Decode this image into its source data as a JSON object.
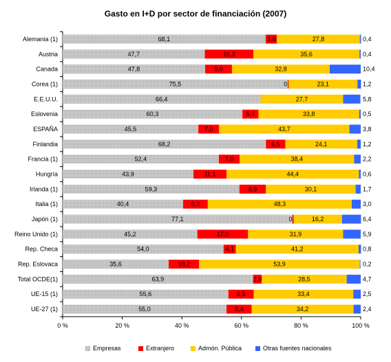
{
  "chart_data": {
    "type": "bar",
    "orientation": "horizontal",
    "stacked": true,
    "title": "Gasto en I+D por sector de financiación (2007)",
    "xlabel": "",
    "ylabel": "",
    "xlim": [
      0,
      100
    ],
    "x_ticks": [
      "0 %",
      "20 %",
      "40 %",
      "60 %",
      "80 %",
      "100 %"
    ],
    "grid": false,
    "legend_position": "bottom",
    "categories": [
      "Alemania (1)",
      "Austria",
      "Canada",
      "Corea (1)",
      "E.E.U.U.",
      "Eslovenia",
      "ESPAÑA",
      "Finlandia",
      "Francia (1)",
      "Hungría",
      "Irlanda (1)",
      "Italia (1)",
      "Japón (1)",
      "Reino Unido (1)",
      "Rep. Checa",
      "Rep. Eslovaca",
      "Total OCDE(1)",
      "UE-15 (1)",
      "UE-27 (1)"
    ],
    "series": [
      {
        "name": "Empresas",
        "color": "#c0c0c0",
        "values": [
          68.1,
          47.7,
          47.8,
          75.5,
          66.4,
          60.3,
          45.5,
          68.2,
          52.4,
          43.9,
          59.3,
          40.4,
          77.1,
          45.2,
          54.0,
          35.6,
          63.9,
          55.6,
          55.0
        ],
        "labels": [
          "68,1",
          "47,7",
          "47,8",
          "75,5",
          "66,4",
          "60,3",
          "45,5",
          "68,2",
          "52,4",
          "43,9",
          "59,3",
          "40,4",
          "77,1",
          "45,2",
          "54,0",
          "35,6",
          "63,9",
          "55,6",
          "55,0"
        ]
      },
      {
        "name": "Extranjero",
        "color": "#ff0000",
        "values": [
          3.8,
          16.3,
          9.0,
          0.3,
          0,
          5.4,
          7.0,
          6.5,
          7.0,
          11.1,
          8.9,
          8.3,
          0.4,
          17.0,
          4.1,
          10.2,
          2.9,
          8.5,
          8.4
        ],
        "labels": [
          "3,8",
          "16,3",
          "9,0",
          "0,3",
          "",
          "5,4",
          "7,0",
          "6,5",
          "7,0",
          "11,1",
          "8,9",
          "8,3",
          "0,4",
          "17,0",
          "4,1",
          "10,2",
          "2,9",
          "8,5",
          "8,4"
        ]
      },
      {
        "name": "Admón. Pública",
        "color": "#ffcc00",
        "values": [
          27.8,
          35.6,
          32.8,
          23.1,
          27.7,
          33.8,
          43.7,
          24.1,
          38.4,
          44.4,
          30.1,
          48.3,
          16.2,
          31.9,
          41.2,
          53.9,
          28.5,
          33.4,
          34.2
        ],
        "labels": [
          "27,8",
          "35,6",
          "32,8",
          "23,1",
          "27,7",
          "33,8",
          "43,7",
          "24,1",
          "38,4",
          "44,4",
          "30,1",
          "48,3",
          "16,2",
          "31,9",
          "41,2",
          "53,9",
          "28,5",
          "33,4",
          "34,2"
        ]
      },
      {
        "name": "Otras fuentes nacionales",
        "color": "#3366ff",
        "values": [
          0.4,
          0.4,
          10.4,
          1.2,
          5.8,
          0.5,
          3.8,
          1.2,
          2.2,
          0.6,
          1.7,
          3.0,
          6.4,
          5.9,
          0.8,
          0.2,
          4.7,
          2.5,
          2.4
        ],
        "labels": [
          "0,4",
          "0,4",
          "10,4",
          "1,2",
          "5,8",
          "0,5",
          "3,8",
          "1,2",
          "2,2",
          "0,6",
          "1,7",
          "3,0",
          "6,4",
          "5,9",
          "0,8",
          "0,2",
          "4,7",
          "2,5",
          "2,4"
        ]
      }
    ]
  }
}
